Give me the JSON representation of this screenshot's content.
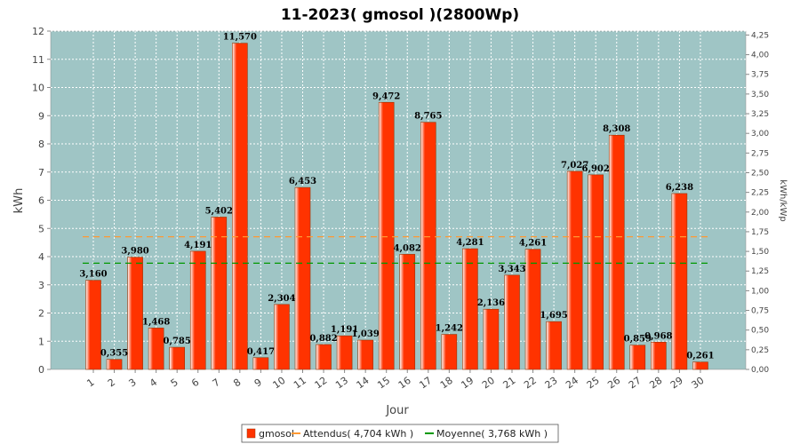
{
  "chart_data": {
    "type": "bar",
    "title": "11-2023( gmosol )(2800Wp)",
    "xlabel": "Jour",
    "ylabel": "kWh",
    "y2label": "kWh/kWp",
    "ylim": [
      0,
      12
    ],
    "y2lim": [
      0,
      4.3
    ],
    "grid": true,
    "legend_placement": "bottom",
    "categories": [
      "1",
      "2",
      "3",
      "4",
      "5",
      "6",
      "7",
      "8",
      "9",
      "10",
      "11",
      "12",
      "13",
      "14",
      "15",
      "16",
      "17",
      "18",
      "19",
      "20",
      "21",
      "22",
      "23",
      "24",
      "25",
      "26",
      "27",
      "28",
      "29",
      "30"
    ],
    "series": [
      {
        "name": "gmosol",
        "values": [
          3.16,
          0.355,
          3.98,
          1.468,
          0.785,
          4.191,
          5.402,
          11.57,
          0.417,
          2.304,
          6.453,
          0.882,
          1.191,
          1.039,
          9.472,
          4.082,
          8.765,
          1.242,
          4.281,
          2.136,
          3.343,
          4.261,
          1.695,
          7.027,
          6.902,
          8.308,
          0.859,
          0.968,
          6.238,
          0.261
        ],
        "labels": [
          "3,160",
          "0,355",
          "3,980",
          "1,468",
          "0,785",
          "4,191",
          "5,402",
          "11,570",
          "0,417",
          "2,304",
          "6,453",
          "0,882",
          "1,191",
          "1,039",
          "9,472",
          "4,082",
          "8,765",
          "1,242",
          "4,281",
          "2,136",
          "3,343",
          "4,261",
          "1,695",
          "7,027",
          "6,902",
          "8,308",
          "0,859",
          "0,968",
          "6,238",
          "0,261"
        ],
        "color": "#ff3300"
      }
    ],
    "reference_lines": [
      {
        "name": "Attendus( 4,704 kWh )",
        "value": 4.704,
        "color": "#ff9933",
        "style": "dashed"
      },
      {
        "name": "Moyenne( 3,768 kWh )",
        "value": 3.768,
        "color": "#009900",
        "style": "dashed"
      }
    ],
    "yticks": [
      "0",
      "1",
      "2",
      "3",
      "4",
      "5",
      "6",
      "7",
      "8",
      "9",
      "10",
      "11",
      "12"
    ],
    "y2ticks": [
      "0,00",
      "0,25",
      "0,50",
      "0,75",
      "1,00",
      "1,25",
      "1,50",
      "1,75",
      "2,00",
      "2,25",
      "2,50",
      "2,75",
      "3,00",
      "3,25",
      "3,50",
      "3,75",
      "4,00",
      "4,25"
    ],
    "legend": [
      {
        "label": "gmosol",
        "kind": "box",
        "color": "#ff3300"
      },
      {
        "label": "Attendus( 4,704 kWh )",
        "kind": "line",
        "color": "#ff9933"
      },
      {
        "label": "Moyenne( 3,768 kWh )",
        "kind": "line",
        "color": "#009900"
      }
    ],
    "colors": {
      "plot_background": "#9fc5c5",
      "grid": "#ffffff"
    }
  }
}
